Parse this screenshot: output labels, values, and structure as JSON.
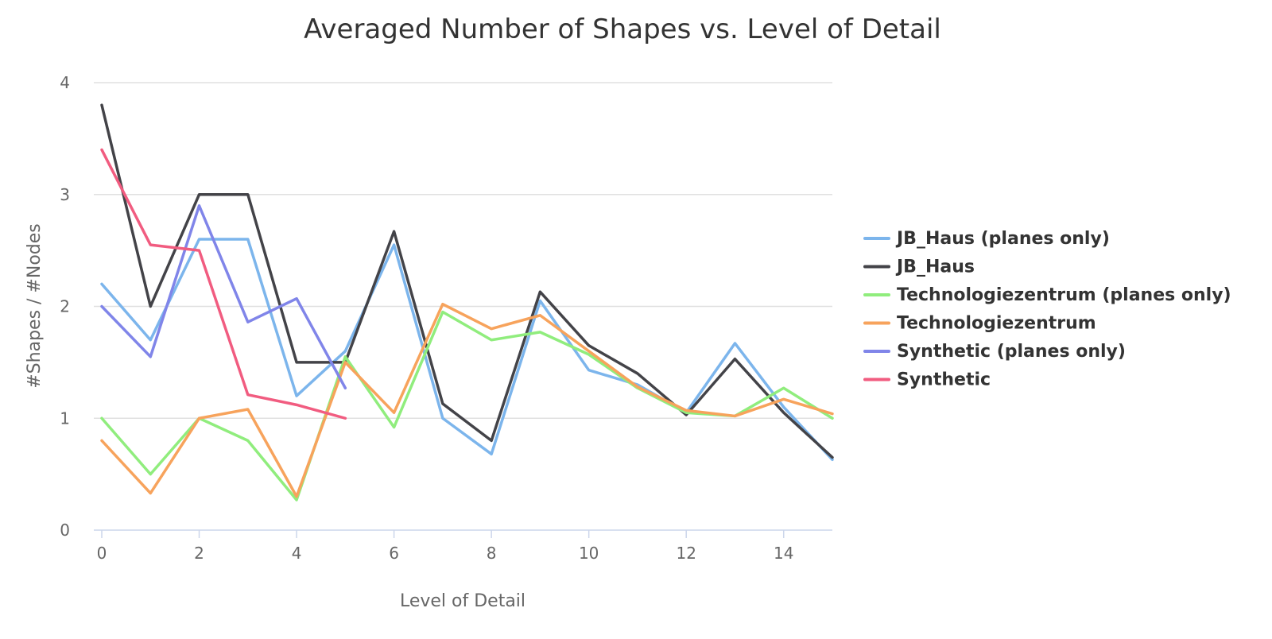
{
  "chart_data": {
    "type": "line",
    "title": "Averaged Number of Shapes vs. Level of Detail",
    "xlabel": "Level of Detail",
    "ylabel": "#Shapes / #Nodes",
    "xlim": [
      0,
      15
    ],
    "ylim": [
      0,
      4
    ],
    "xticks": [
      0,
      2,
      4,
      6,
      8,
      10,
      12,
      14
    ],
    "yticks": [
      0,
      1,
      2,
      3,
      4
    ],
    "grid": true,
    "legend_position": "right",
    "series": [
      {
        "name": "JB_Haus (planes only)",
        "color": "#7cb5ec",
        "x": [
          0,
          1,
          2,
          3,
          4,
          5,
          6,
          7,
          8,
          9,
          10,
          11,
          12,
          13,
          14,
          15
        ],
        "values": [
          2.2,
          1.7,
          2.6,
          2.6,
          1.2,
          1.6,
          2.55,
          1.0,
          0.68,
          2.05,
          1.43,
          1.3,
          1.05,
          1.67,
          1.1,
          0.63
        ]
      },
      {
        "name": "JB_Haus",
        "color": "#434348",
        "x": [
          0,
          1,
          2,
          3,
          4,
          5,
          6,
          7,
          8,
          9,
          10,
          11,
          12,
          13,
          14,
          15
        ],
        "values": [
          3.8,
          2.0,
          3.0,
          3.0,
          1.5,
          1.5,
          2.67,
          1.13,
          0.8,
          2.13,
          1.65,
          1.4,
          1.03,
          1.53,
          1.05,
          0.65
        ]
      },
      {
        "name": "Technologiezentrum (planes only)",
        "color": "#90ed7d",
        "x": [
          0,
          1,
          2,
          3,
          4,
          5,
          6,
          7,
          8,
          9,
          10,
          11,
          12,
          13,
          14,
          15
        ],
        "values": [
          1.0,
          0.5,
          1.0,
          0.8,
          0.27,
          1.55,
          0.92,
          1.95,
          1.7,
          1.77,
          1.57,
          1.27,
          1.05,
          1.02,
          1.27,
          1.0
        ]
      },
      {
        "name": "Technologiezentrum",
        "color": "#f7a35c",
        "x": [
          0,
          1,
          2,
          3,
          4,
          5,
          6,
          7,
          8,
          9,
          10,
          11,
          12,
          13,
          14,
          15
        ],
        "values": [
          0.8,
          0.33,
          1.0,
          1.08,
          0.3,
          1.5,
          1.05,
          2.02,
          1.8,
          1.92,
          1.6,
          1.28,
          1.07,
          1.02,
          1.17,
          1.04
        ]
      },
      {
        "name": "Synthetic (planes only)",
        "color": "#8085e9",
        "x": [
          0,
          1,
          2,
          3,
          4,
          5
        ],
        "values": [
          2.0,
          1.55,
          2.9,
          1.86,
          2.07,
          1.27
        ]
      },
      {
        "name": "Synthetic",
        "color": "#f15c80",
        "x": [
          0,
          1,
          2,
          3,
          4,
          5
        ],
        "values": [
          3.4,
          2.55,
          2.5,
          1.21,
          1.12,
          1.0
        ]
      }
    ]
  }
}
